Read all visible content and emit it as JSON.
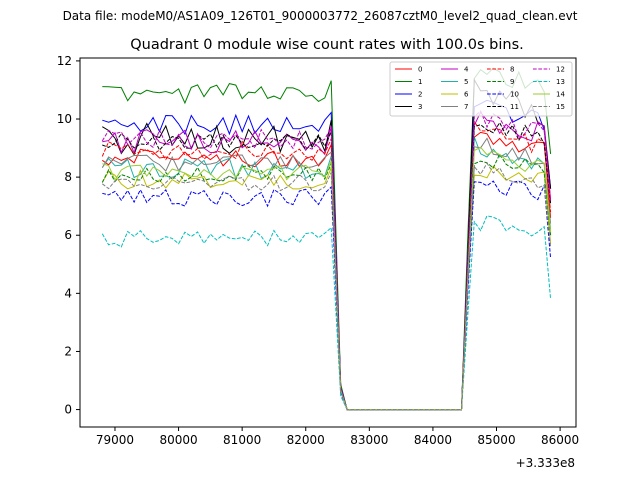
{
  "chart_data": {
    "type": "line",
    "suptitle": "Data file: modeM0/AS1A09_126T01_9000003772_26087cztM0_level2_quad_clean.evt",
    "title": "Quadrant 0 module wise count rates with 100.0s bins.",
    "xlabel": "",
    "ylabel": "",
    "x_offset_label": "+3.333e8",
    "xlim": [
      78450,
      86250
    ],
    "ylim": [
      -0.6,
      12.1
    ],
    "x_ticks": [
      79000,
      80000,
      81000,
      82000,
      83000,
      84000,
      85000,
      86000
    ],
    "x_tick_labels": [
      "79000",
      "80000",
      "81000",
      "82000",
      "83000",
      "84000",
      "85000",
      "86000"
    ],
    "y_ticks": [
      0,
      2,
      4,
      6,
      8,
      10,
      12
    ],
    "y_tick_labels": [
      "0",
      "2",
      "4",
      "6",
      "8",
      "10",
      "12"
    ],
    "gap_bins": [
      82550,
      82650,
      82750,
      82850,
      82950,
      83050,
      83150,
      83250,
      83350,
      83450,
      83550,
      83650,
      83750,
      83850,
      83950,
      84050,
      84150,
      84250,
      84350,
      84450
    ],
    "segments": [
      {
        "x_start": 78800,
        "x_step": 100,
        "count": 37
      },
      {
        "x_start": 84550,
        "x_step": 100,
        "count": 14
      }
    ],
    "legend_position": "upper right",
    "series": [
      {
        "name": "0",
        "color": "#ff0000",
        "dash": "solid",
        "level": 8.7,
        "amp": 0.35,
        "level2": 8.8,
        "ramp": 0.6
      },
      {
        "name": "1",
        "color": "#008000",
        "dash": "solid",
        "level": 10.9,
        "amp": 0.35,
        "level2": 11.0,
        "ramp": 0.9
      },
      {
        "name": "2",
        "color": "#0000ff",
        "dash": "solid",
        "level": 9.8,
        "amp": 0.35,
        "level2": 9.8,
        "ramp": 0.9
      },
      {
        "name": "3",
        "color": "#000000",
        "dash": "solid",
        "level": 9.3,
        "amp": 0.55,
        "level2": 9.8,
        "ramp": 1.6
      },
      {
        "name": "4",
        "color": "#c000c0",
        "dash": "solid",
        "level": 9.2,
        "amp": 0.45,
        "level2": 9.4,
        "ramp": 1.0
      },
      {
        "name": "5",
        "color": "#20b2aa",
        "dash": "solid",
        "level": 8.3,
        "amp": 0.35,
        "level2": 8.4,
        "ramp": 0.8
      },
      {
        "name": "6",
        "color": "#bfbf00",
        "dash": "solid",
        "level": 7.9,
        "amp": 0.35,
        "level2": 7.9,
        "ramp": 0.6
      },
      {
        "name": "7",
        "color": "#808080",
        "dash": "solid",
        "level": 8.5,
        "amp": 0.3,
        "level2": 8.6,
        "ramp": 0.7
      },
      {
        "name": "8",
        "color": "#ff0000",
        "dash": "dashed",
        "level": 8.9,
        "amp": 0.35,
        "level2": 9.0,
        "ramp": 0.8
      },
      {
        "name": "9",
        "color": "#008000",
        "dash": "dashed",
        "level": 8.1,
        "amp": 0.3,
        "level2": 8.2,
        "ramp": 0.6
      },
      {
        "name": "10",
        "color": "#0000ff",
        "dash": "dashed",
        "level": 7.3,
        "amp": 0.3,
        "level2": 7.4,
        "ramp": 0.5
      },
      {
        "name": "11",
        "color": "#000000",
        "dash": "dashed",
        "level": 9.2,
        "amp": 0.3,
        "level2": 9.3,
        "ramp": 0.7
      },
      {
        "name": "12",
        "color": "#c000c0",
        "dash": "dashed",
        "level": 9.3,
        "amp": 0.35,
        "level2": 9.4,
        "ramp": 0.8
      },
      {
        "name": "13",
        "color": "#00bfbf",
        "dash": "dashed",
        "level": 5.9,
        "amp": 0.3,
        "level2": 6.0,
        "ramp": 0.6
      },
      {
        "name": "14",
        "color": "#9acd32",
        "dash": "solid",
        "level": 8.2,
        "amp": 0.3,
        "level2": 8.3,
        "ramp": 0.6
      },
      {
        "name": "15",
        "color": "#808080",
        "dash": "dashed",
        "level": 7.8,
        "amp": 0.3,
        "level2": 7.8,
        "ramp": 0.6
      }
    ]
  }
}
